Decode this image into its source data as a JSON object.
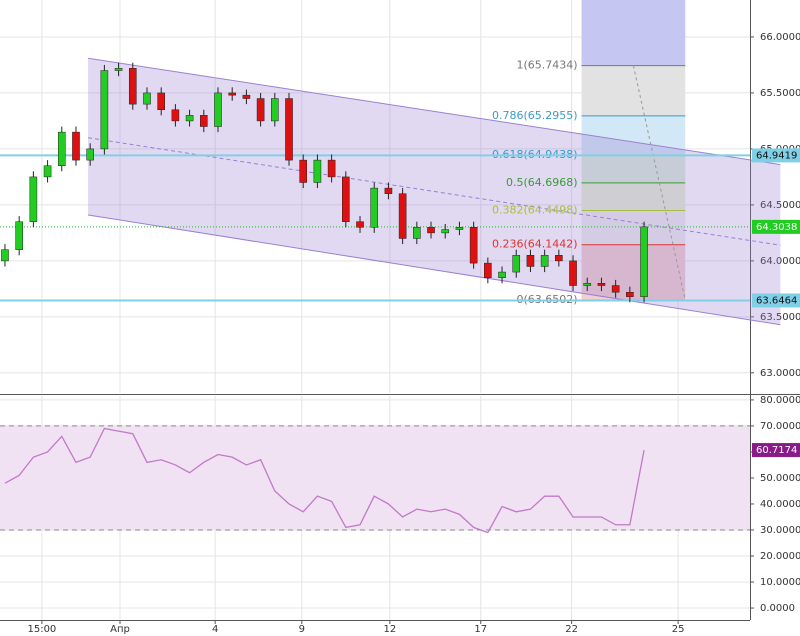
{
  "chart_data": [
    {
      "type": "candlestick",
      "x": [
        0,
        1,
        2,
        3,
        4,
        5,
        6,
        7,
        8,
        9,
        10,
        11,
        12,
        13,
        14,
        15,
        16,
        17,
        18,
        19,
        20,
        21,
        22,
        23,
        24,
        25,
        26,
        27,
        28,
        29,
        30,
        31,
        32,
        33,
        34,
        35,
        36,
        37,
        38,
        39,
        40,
        41,
        42,
        43,
        44,
        45
      ],
      "open": [
        64.0,
        64.1,
        64.35,
        64.75,
        64.85,
        65.15,
        64.9,
        65.0,
        65.7,
        65.72,
        65.4,
        65.5,
        65.35,
        65.25,
        65.3,
        65.2,
        65.5,
        65.48,
        65.45,
        65.25,
        65.45,
        64.9,
        64.7,
        64.9,
        64.75,
        64.35,
        64.3,
        64.65,
        64.6,
        64.2,
        64.3,
        64.25,
        64.28,
        64.3,
        63.98,
        63.85,
        63.9,
        64.05,
        63.95,
        64.05,
        64.0,
        63.78,
        63.8,
        63.78,
        63.72,
        63.68
      ],
      "high": [
        64.15,
        64.4,
        64.8,
        64.9,
        65.2,
        65.2,
        65.05,
        65.75,
        65.77,
        65.77,
        65.55,
        65.55,
        65.4,
        65.35,
        65.35,
        65.55,
        65.55,
        65.53,
        65.5,
        65.5,
        65.5,
        64.95,
        64.95,
        64.95,
        64.8,
        64.4,
        64.7,
        64.7,
        64.65,
        64.35,
        64.35,
        64.33,
        64.35,
        64.35,
        64.03,
        63.95,
        64.1,
        64.1,
        64.1,
        64.1,
        64.05,
        63.85,
        63.85,
        63.83,
        63.77,
        64.35
      ],
      "low": [
        63.95,
        64.05,
        64.3,
        64.7,
        64.8,
        64.85,
        64.85,
        64.95,
        65.65,
        65.35,
        65.35,
        65.3,
        65.2,
        65.2,
        65.15,
        65.15,
        65.43,
        65.4,
        65.2,
        65.2,
        64.85,
        64.65,
        64.65,
        64.7,
        64.3,
        64.25,
        64.25,
        64.55,
        64.15,
        64.15,
        64.2,
        64.2,
        64.23,
        63.93,
        63.8,
        63.8,
        63.85,
        63.9,
        63.9,
        63.95,
        63.73,
        63.73,
        63.73,
        63.67,
        63.63,
        63.63
      ],
      "close": [
        64.1,
        64.35,
        64.75,
        64.85,
        65.15,
        64.9,
        65.0,
        65.7,
        65.72,
        65.4,
        65.5,
        65.35,
        65.25,
        65.3,
        65.2,
        65.5,
        65.48,
        65.45,
        65.25,
        65.45,
        64.9,
        64.7,
        64.9,
        64.75,
        64.35,
        64.3,
        64.65,
        64.6,
        64.2,
        64.3,
        64.25,
        64.28,
        64.3,
        63.98,
        63.85,
        63.9,
        64.05,
        63.95,
        64.05,
        64.0,
        63.78,
        63.8,
        63.78,
        63.72,
        63.68,
        64.3038
      ],
      "up_color": "#22cc22",
      "down_color": "#dd1111",
      "xlim": [
        -0.35,
        52.46
      ],
      "xticks": [
        {
          "value": 2.6,
          "label": "15:00"
        },
        {
          "value": 8.1,
          "label": "Апр"
        },
        {
          "value": 14.8,
          "label": "4"
        },
        {
          "value": 20.9,
          "label": "9"
        },
        {
          "value": 27.1,
          "label": "12"
        },
        {
          "value": 33.5,
          "label": "17"
        },
        {
          "value": 39.9,
          "label": "22"
        },
        {
          "value": 47.4,
          "label": "25"
        }
      ],
      "ylim": [
        62.82,
        66.33
      ],
      "yticks": [
        {
          "value": 63,
          "label": "63.0000"
        },
        {
          "value": 63.5,
          "label": "63.5000"
        },
        {
          "value": 64,
          "label": "64.0000"
        },
        {
          "value": 64.5,
          "label": "64.5000"
        },
        {
          "value": 65,
          "label": "65.0000"
        },
        {
          "value": 65.5,
          "label": "65.5000"
        },
        {
          "value": 66,
          "label": "66.0000"
        }
      ],
      "grid": true,
      "levels": [
        {
          "value": 64.9419,
          "color": "#7fd0e6"
        },
        {
          "value": 63.6464,
          "color": "#7fd0e6"
        },
        {
          "value": 64.3038,
          "color": "#22bb22"
        }
      ],
      "channel": {
        "x": [
          5.85,
          54.6
        ],
        "upper": [
          65.81,
          64.86
        ],
        "middle": [
          65.1,
          64.14
        ],
        "lower": [
          64.41,
          63.43
        ],
        "color": "#9a80d2"
      },
      "fibonacci": {
        "x": [
          40.6,
          47.9
        ],
        "top_color": "#c6c6f2",
        "levels": [
          {
            "value": 65.7434,
            "label": "1(65.7434)",
            "color": "#777777",
            "fill": "#e2e2e2"
          },
          {
            "value": 65.2955,
            "label": "0.786(65.2955)",
            "color": "#3a9acb",
            "fill": "#d2e8f6"
          },
          {
            "value": 64.9438,
            "label": "0.618(64.9438)",
            "color": "#3a9acb",
            "fill": "#d8eed8"
          },
          {
            "value": 64.6968,
            "label": "0.5(64.6968)",
            "color": "#3a9a3a",
            "fill": "#e4efd4"
          },
          {
            "value": 64.4498,
            "label": "0.382(64.4498)",
            "color": "#a8c040",
            "fill": "#ececec"
          },
          {
            "value": 64.1442,
            "label": "0.236(64.1442)",
            "color": "#dd3333",
            "fill": "#f1cfcf"
          },
          {
            "value": 63.6502,
            "label": "0(63.6502)",
            "color": "#777777",
            "fill": "none"
          }
        ]
      }
    },
    {
      "type": "line",
      "x": [
        0,
        1,
        2,
        3,
        4,
        5,
        6,
        7,
        8,
        9,
        10,
        11,
        12,
        13,
        14,
        15,
        16,
        17,
        18,
        19,
        20,
        21,
        22,
        23,
        24,
        25,
        26,
        27,
        28,
        29,
        30,
        31,
        32,
        33,
        34,
        35,
        36,
        37,
        38,
        39,
        40,
        41,
        42,
        43,
        44,
        45
      ],
      "values": [
        48,
        51,
        58,
        60,
        66,
        56,
        58,
        69,
        68,
        67,
        56,
        57,
        55,
        52,
        56,
        59,
        58,
        55,
        57,
        45,
        40,
        37,
        43,
        41,
        31,
        32,
        43,
        40,
        35,
        38,
        37,
        38,
        36,
        31,
        29,
        39,
        37,
        38,
        43,
        43,
        35,
        35,
        35,
        32,
        32,
        60.7174
      ],
      "color": "#c07ac8",
      "band": [
        30,
        70
      ],
      "band_color": "#f0e2f2",
      "ylim": [
        -4.6,
        81.5
      ],
      "yticks": [
        {
          "value": 0,
          "label": "0.0000"
        },
        {
          "value": 10,
          "label": "10.0000"
        },
        {
          "value": 20,
          "label": "20.0000"
        },
        {
          "value": 30,
          "label": "30.0000"
        },
        {
          "value": 40,
          "label": "40.0000"
        },
        {
          "value": 50,
          "label": "50.0000"
        },
        {
          "value": 60,
          "label": "60.0000"
        },
        {
          "value": 70,
          "label": "70.0000"
        },
        {
          "value": 80,
          "label": "80.0000"
        }
      ],
      "grid": true
    }
  ]
}
